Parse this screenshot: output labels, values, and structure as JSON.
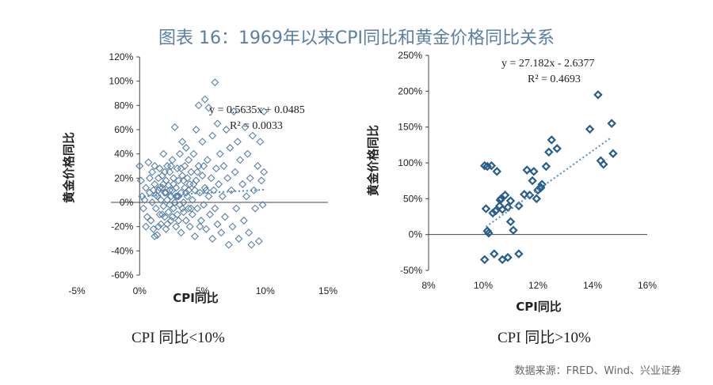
{
  "title": "图表 16：1969年以来CPI同比和黄金价格同比关系",
  "source": "数据来源：FRED、Wind、兴业证券",
  "chart_data": [
    {
      "type": "scatter",
      "caption": "CPI 同比<10%",
      "xlabel": "CPI同比",
      "ylabel": "黄金价格同比",
      "xlim": [
        -0.05,
        0.15
      ],
      "ylim": [
        -0.6,
        1.2
      ],
      "x_ticks": [
        "-5%",
        "0%",
        "5%",
        "10%",
        "15%"
      ],
      "y_ticks": [
        "120%",
        "100%",
        "80%",
        "60%",
        "40%",
        "20%",
        "0%",
        "-20%",
        "-40%",
        "-60%"
      ],
      "equation": "y = 0.5635x + 0.0485",
      "r_squared": "R² = 0.0033",
      "trendline": {
        "slope": 0.5635,
        "intercept": 0.0485,
        "x_range": [
          0.0,
          0.1
        ]
      },
      "points": [
        [
          0.0,
          0.3
        ],
        [
          0.001,
          0.18
        ],
        [
          0.002,
          0.05
        ],
        [
          0.003,
          -0.05
        ],
        [
          0.004,
          0.02
        ],
        [
          0.005,
          0.12
        ],
        [
          0.006,
          -0.12
        ],
        [
          0.007,
          0.33
        ],
        [
          0.008,
          0.08
        ],
        [
          0.009,
          -0.15
        ],
        [
          0.01,
          0.25
        ],
        [
          0.01,
          0.0
        ],
        [
          0.011,
          -0.22
        ],
        [
          0.012,
          0.15
        ],
        [
          0.012,
          0.3
        ],
        [
          0.013,
          -0.05
        ],
        [
          0.013,
          0.06
        ],
        [
          0.014,
          -0.27
        ],
        [
          0.015,
          0.2
        ],
        [
          0.015,
          0.1
        ],
        [
          0.016,
          -0.1
        ],
        [
          0.016,
          0.28
        ],
        [
          0.017,
          0.02
        ],
        [
          0.017,
          -0.18
        ],
        [
          0.018,
          0.12
        ],
        [
          0.018,
          0.22
        ],
        [
          0.019,
          -0.03
        ],
        [
          0.019,
          0.4
        ],
        [
          0.02,
          0.08
        ],
        [
          0.02,
          -0.12
        ],
        [
          0.021,
          0.18
        ],
        [
          0.021,
          -0.22
        ],
        [
          0.022,
          0.3
        ],
        [
          0.022,
          0.02
        ],
        [
          0.023,
          -0.08
        ],
        [
          0.023,
          0.14
        ],
        [
          0.024,
          0.25
        ],
        [
          0.024,
          -0.02
        ],
        [
          0.025,
          0.05
        ],
        [
          0.025,
          -0.15
        ],
        [
          0.026,
          0.35
        ],
        [
          0.026,
          0.1
        ],
        [
          0.027,
          -0.05
        ],
        [
          0.027,
          0.2
        ],
        [
          0.028,
          0.62
        ],
        [
          0.028,
          0.0
        ],
        [
          0.029,
          -0.2
        ],
        [
          0.029,
          0.12
        ],
        [
          0.03,
          0.28
        ],
        [
          0.03,
          -0.1
        ],
        [
          0.031,
          0.05
        ],
        [
          0.031,
          0.18
        ],
        [
          0.032,
          -0.02
        ],
        [
          0.032,
          0.4
        ],
        [
          0.033,
          0.08
        ],
        [
          0.033,
          -0.25
        ],
        [
          0.034,
          0.22
        ],
        [
          0.034,
          0.5
        ],
        [
          0.035,
          0.0
        ],
        [
          0.035,
          -0.08
        ],
        [
          0.036,
          0.3
        ],
        [
          0.036,
          0.12
        ],
        [
          0.037,
          -0.15
        ],
        [
          0.037,
          0.45
        ],
        [
          0.038,
          0.05
        ],
        [
          0.038,
          0.2
        ],
        [
          0.039,
          -0.05
        ],
        [
          0.039,
          0.35
        ],
        [
          0.04,
          0.15
        ],
        [
          0.04,
          -0.2
        ],
        [
          0.041,
          0.25
        ],
        [
          0.042,
          0.02
        ],
        [
          0.042,
          -0.1
        ],
        [
          0.043,
          0.4
        ],
        [
          0.044,
          0.1
        ],
        [
          0.044,
          -0.28
        ],
        [
          0.045,
          0.18
        ],
        [
          0.045,
          0.6
        ],
        [
          0.046,
          -0.05
        ],
        [
          0.047,
          0.3
        ],
        [
          0.047,
          0.8
        ],
        [
          0.048,
          0.08
        ],
        [
          0.049,
          -0.15
        ],
        [
          0.05,
          0.22
        ],
        [
          0.05,
          0.5
        ],
        [
          0.051,
          -0.02
        ],
        [
          0.052,
          0.12
        ],
        [
          0.052,
          0.85
        ],
        [
          0.053,
          -0.22
        ],
        [
          0.054,
          0.35
        ],
        [
          0.055,
          0.05
        ],
        [
          0.055,
          0.78
        ],
        [
          0.056,
          -0.1
        ],
        [
          0.057,
          0.2
        ],
        [
          0.058,
          -0.3
        ],
        [
          0.058,
          0.55
        ],
        [
          0.059,
          0.1
        ],
        [
          0.06,
          0.99
        ],
        [
          0.06,
          -0.05
        ],
        [
          0.061,
          0.28
        ],
        [
          0.062,
          0.65
        ],
        [
          0.062,
          -0.18
        ],
        [
          0.063,
          0.15
        ],
        [
          0.064,
          0.4
        ],
        [
          0.065,
          -0.25
        ],
        [
          0.066,
          0.05
        ],
        [
          0.067,
          0.3
        ],
        [
          0.068,
          -0.12
        ],
        [
          0.069,
          0.6
        ],
        [
          0.07,
          0.2
        ],
        [
          0.071,
          -0.35
        ],
        [
          0.072,
          0.45
        ],
        [
          0.073,
          0.1
        ],
        [
          0.074,
          -0.2
        ],
        [
          0.075,
          0.75
        ],
        [
          0.076,
          0.25
        ],
        [
          0.077,
          -0.05
        ],
        [
          0.078,
          0.5
        ],
        [
          0.079,
          -0.3
        ],
        [
          0.08,
          0.35
        ],
        [
          0.082,
          0.15
        ],
        [
          0.083,
          -0.15
        ],
        [
          0.084,
          0.62
        ],
        [
          0.085,
          0.05
        ],
        [
          0.086,
          0.4
        ],
        [
          0.087,
          -0.25
        ],
        [
          0.088,
          0.2
        ],
        [
          0.089,
          -0.35
        ],
        [
          0.09,
          0.55
        ],
        [
          0.091,
          0.1
        ],
        [
          0.092,
          -0.05
        ],
        [
          0.094,
          0.3
        ],
        [
          0.095,
          -0.32
        ],
        [
          0.096,
          0.5
        ],
        [
          0.097,
          0.18
        ],
        [
          0.098,
          -0.02
        ],
        [
          0.099,
          0.75
        ],
        [
          0.099,
          0.25
        ],
        [
          0.005,
          -0.2
        ],
        [
          0.008,
          0.2
        ],
        [
          0.011,
          0.1
        ],
        [
          0.014,
          0.05
        ],
        [
          0.016,
          0.12
        ],
        [
          0.019,
          0.15
        ],
        [
          0.021,
          0.08
        ],
        [
          0.024,
          0.1
        ],
        [
          0.026,
          -0.12
        ],
        [
          0.029,
          0.05
        ],
        [
          0.031,
          -0.15
        ],
        [
          0.034,
          -0.05
        ],
        [
          0.037,
          0.08
        ],
        [
          0.039,
          0.1
        ],
        [
          0.041,
          -0.05
        ],
        [
          0.043,
          0.15
        ],
        [
          0.046,
          0.25
        ],
        [
          0.048,
          -0.2
        ],
        [
          0.051,
          0.3
        ],
        [
          0.053,
          0.1
        ],
        [
          0.012,
          -0.28
        ],
        [
          0.015,
          -0.2
        ],
        [
          0.018,
          -0.1
        ],
        [
          0.02,
          0.25
        ],
        [
          0.022,
          -0.18
        ],
        [
          0.025,
          0.3
        ],
        [
          0.027,
          0.15
        ],
        [
          0.03,
          0.05
        ],
        [
          0.033,
          0.28
        ],
        [
          0.035,
          0.18
        ]
      ]
    },
    {
      "type": "scatter",
      "caption": "CPI 同比>10%",
      "xlabel": "CPI同比",
      "ylabel": "黄金价格同比",
      "xlim": [
        0.08,
        0.16
      ],
      "ylim": [
        -0.5,
        2.5
      ],
      "x_ticks": [
        "8%",
        "10%",
        "12%",
        "14%",
        "16%"
      ],
      "y_ticks": [
        "250%",
        "200%",
        "150%",
        "100%",
        "50%",
        "0%",
        "-50%"
      ],
      "equation": "y = 27.182x - 2.6377",
      "r_squared": "R² = 0.4693",
      "trendline": {
        "slope": 27.182,
        "intercept": -2.6377,
        "x_range": [
          0.101,
          0.147
        ]
      },
      "points": [
        [
          0.1005,
          0.96
        ],
        [
          0.1015,
          0.95
        ],
        [
          0.103,
          0.96
        ],
        [
          0.105,
          0.88
        ],
        [
          0.101,
          0.36
        ],
        [
          0.1015,
          0.05
        ],
        [
          0.102,
          0.02
        ],
        [
          0.1035,
          0.3
        ],
        [
          0.1045,
          0.33
        ],
        [
          0.106,
          0.4
        ],
        [
          0.1062,
          0.48
        ],
        [
          0.1065,
          0.5
        ],
        [
          0.107,
          0.35
        ],
        [
          0.108,
          0.55
        ],
        [
          0.109,
          0.38
        ],
        [
          0.11,
          0.18
        ],
        [
          0.111,
          0.06
        ],
        [
          0.113,
          0.4
        ],
        [
          0.115,
          0.56
        ],
        [
          0.116,
          0.9
        ],
        [
          0.117,
          0.55
        ],
        [
          0.118,
          0.75
        ],
        [
          0.1185,
          0.88
        ],
        [
          0.12,
          0.62
        ],
        [
          0.121,
          0.65
        ],
        [
          0.1215,
          0.7
        ],
        [
          0.123,
          0.95
        ],
        [
          0.124,
          1.15
        ],
        [
          0.125,
          1.32
        ],
        [
          0.127,
          1.2
        ],
        [
          0.139,
          1.47
        ],
        [
          0.142,
          1.95
        ],
        [
          0.143,
          1.03
        ],
        [
          0.144,
          0.98
        ],
        [
          0.147,
          1.55
        ],
        [
          0.1475,
          1.13
        ],
        [
          0.1005,
          -0.35
        ],
        [
          0.104,
          -0.27
        ],
        [
          0.107,
          -0.35
        ],
        [
          0.109,
          -0.32
        ],
        [
          0.113,
          -0.27
        ],
        [
          0.11,
          0.47
        ],
        [
          0.121,
          0.66
        ],
        [
          0.1195,
          0.5
        ]
      ]
    }
  ]
}
